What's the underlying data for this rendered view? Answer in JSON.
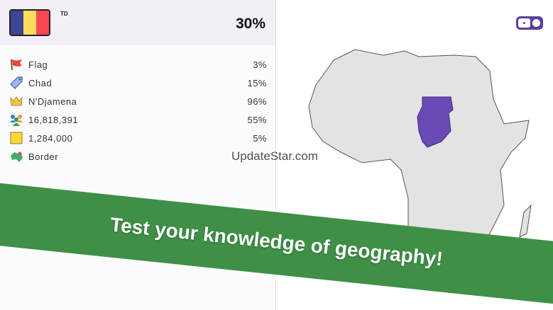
{
  "header": {
    "country_code": "TD",
    "score": "30%",
    "flag_colors": [
      "#404596",
      "#fcdc5a",
      "#f94655"
    ]
  },
  "stats": [
    {
      "icon": "flag-icon",
      "label": "Flag",
      "value": "3%"
    },
    {
      "icon": "tag-icon",
      "label": "Chad",
      "value": "15%"
    },
    {
      "icon": "crown-icon",
      "label": "N'Djamena",
      "value": "96%"
    },
    {
      "icon": "people-icon",
      "label": "16,818,391",
      "value": "55%"
    },
    {
      "icon": "area-square-icon",
      "label": "1,284,000",
      "value": "5%"
    },
    {
      "icon": "map-border-icon",
      "label": "Border",
      "value": ""
    }
  ],
  "map": {
    "highlight_country": "Chad",
    "highlight_color": "#6a4bb5",
    "land_color": "#e3e3e3"
  },
  "banner": {
    "text": "Test your knowledge of geography!",
    "color": "#3f8f47"
  },
  "watermark": "UpdateStar.com"
}
